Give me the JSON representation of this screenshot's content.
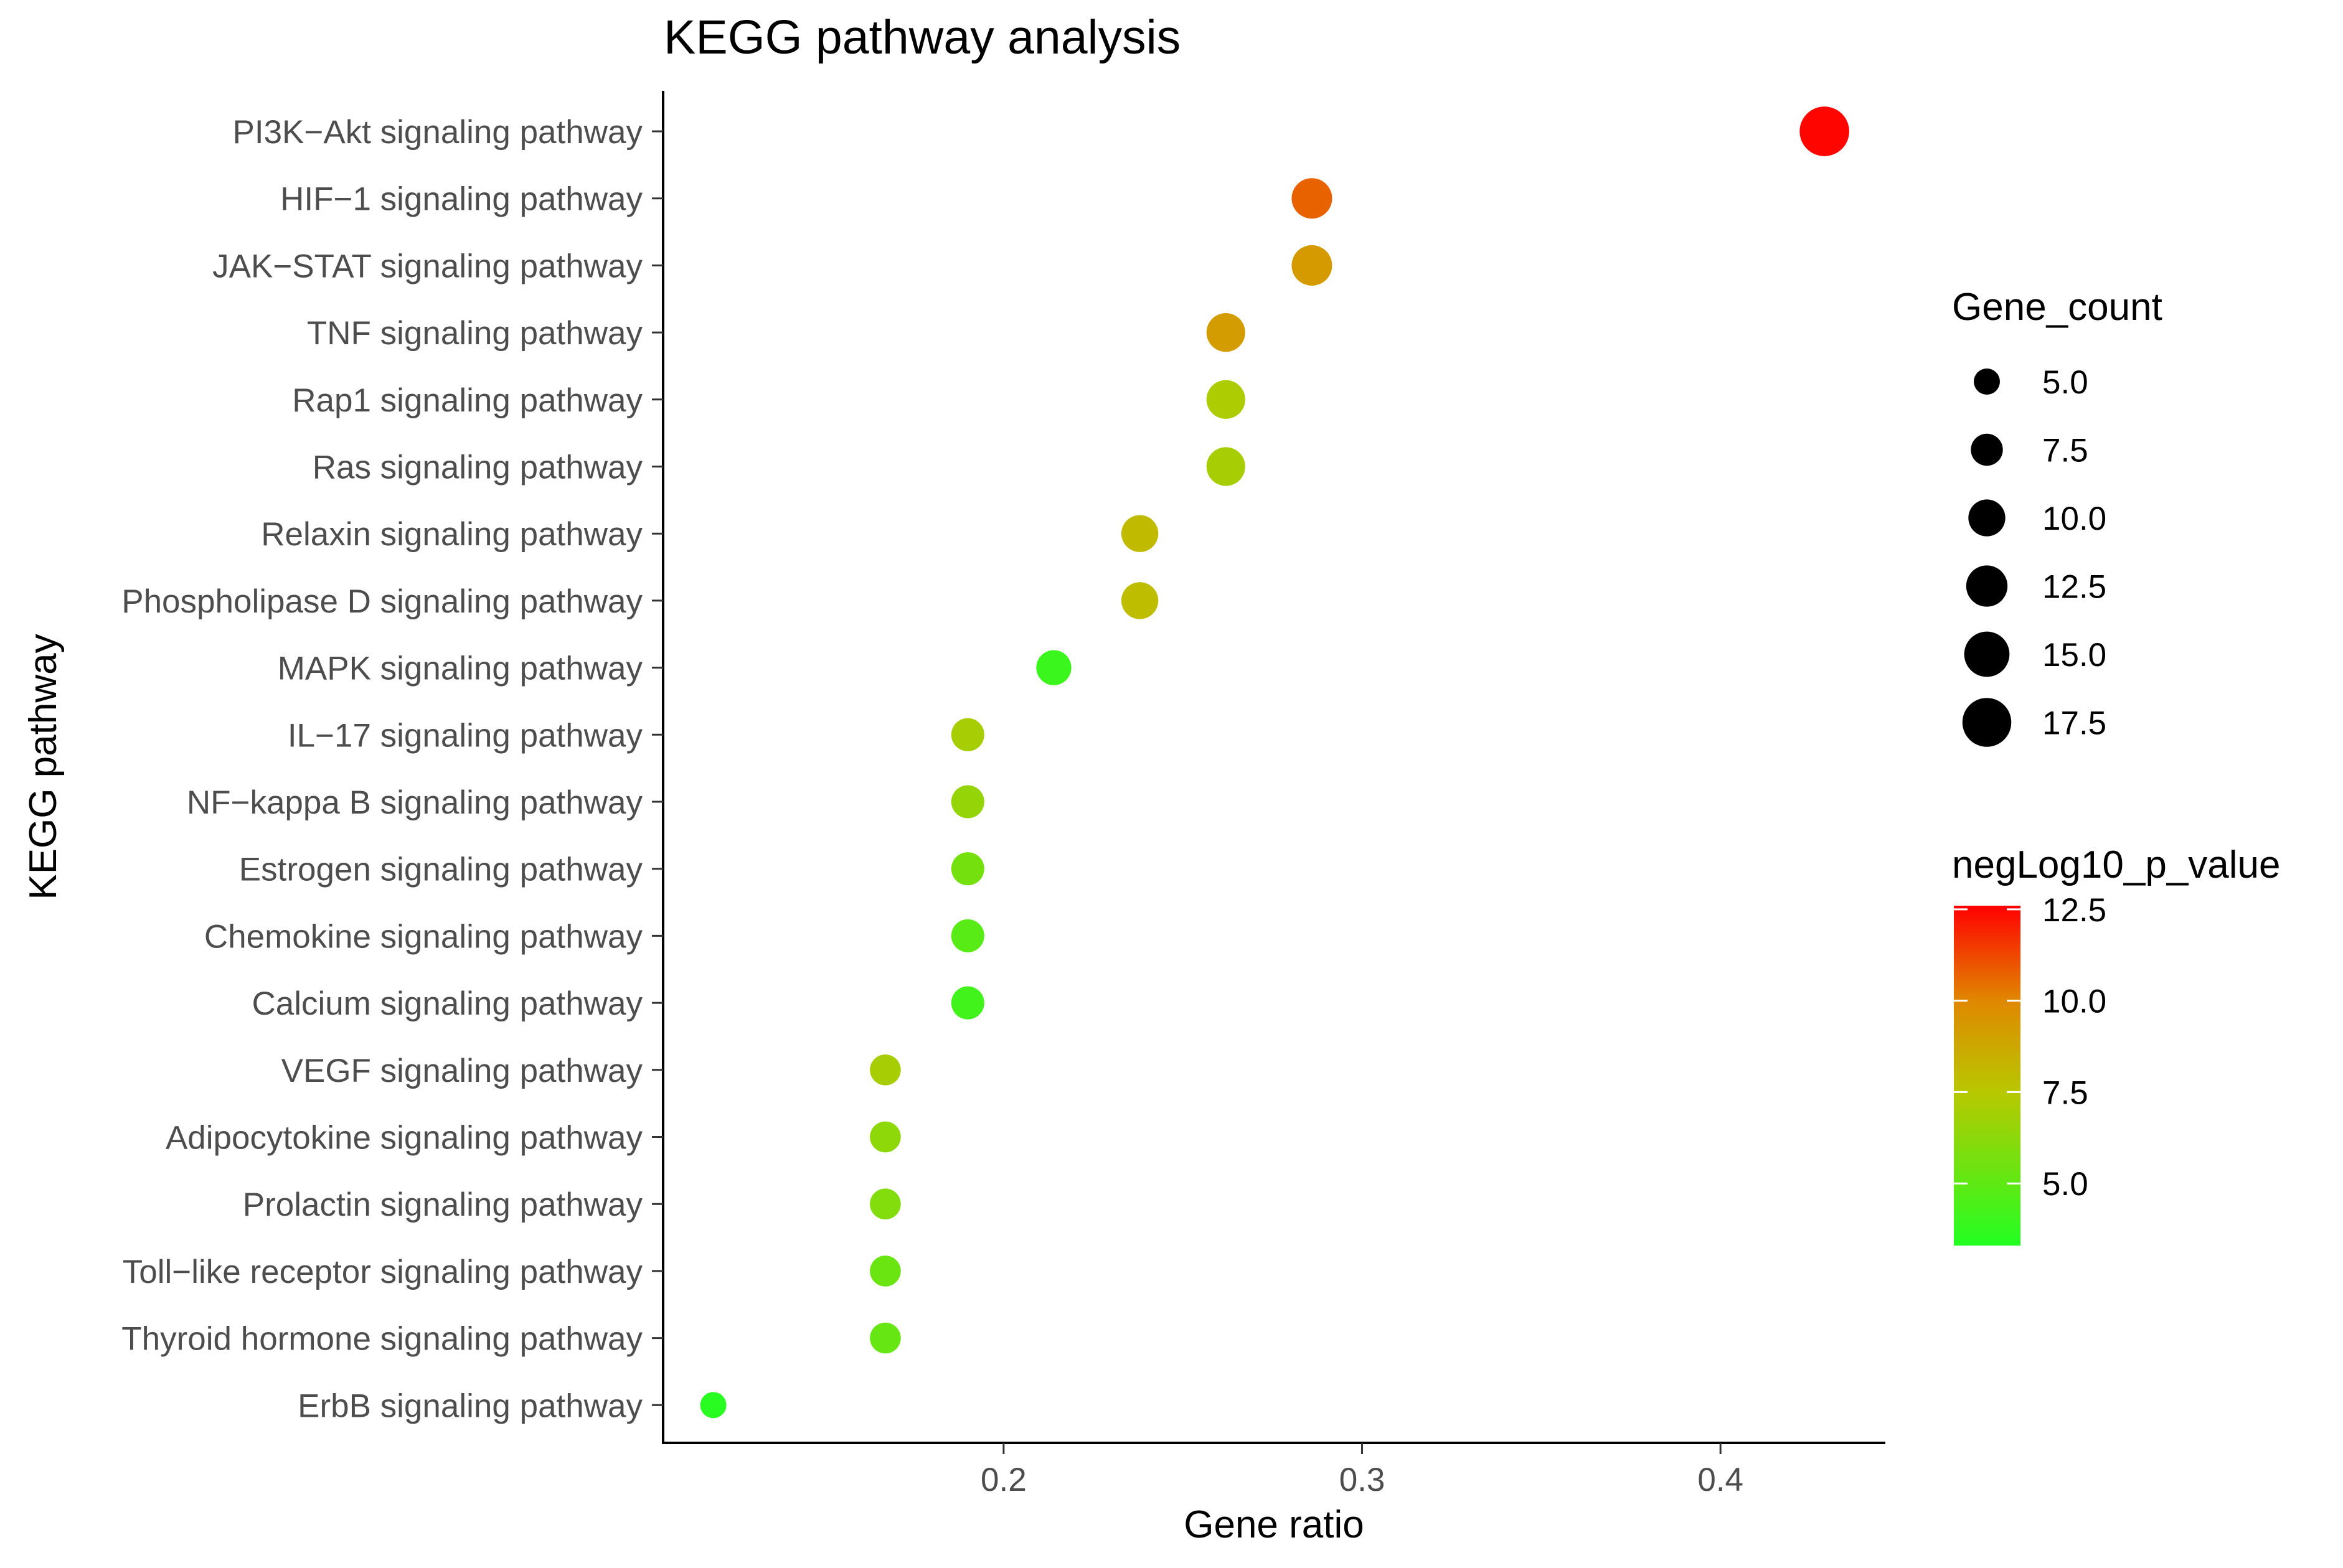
{
  "chart_data": {
    "type": "scatter",
    "title": "KEGG pathway analysis",
    "xlabel": "Gene ratio",
    "ylabel": "KEGG pathway",
    "xlim": [
      0.105,
      0.446
    ],
    "xticks": [
      "0.2",
      "0.3",
      "0.4"
    ],
    "xtick_values": [
      0.2,
      0.3,
      0.4
    ],
    "grid": false,
    "points": [
      {
        "pathway": "PI3K−Akt signaling pathway",
        "gene_ratio": 0.429,
        "gene_count": 18,
        "neglog10_p": 12.5
      },
      {
        "pathway": "HIF−1 signaling pathway",
        "gene_ratio": 0.286,
        "gene_count": 12,
        "neglog10_p": 10.7
      },
      {
        "pathway": "JAK−STAT signaling pathway",
        "gene_ratio": 0.286,
        "gene_count": 12,
        "neglog10_p": 9.3
      },
      {
        "pathway": "TNF signaling pathway",
        "gene_ratio": 0.262,
        "gene_count": 11,
        "neglog10_p": 9.2
      },
      {
        "pathway": "Rap1 signaling pathway",
        "gene_ratio": 0.262,
        "gene_count": 11,
        "neglog10_p": 7.2
      },
      {
        "pathway": "Ras signaling pathway",
        "gene_ratio": 0.262,
        "gene_count": 11,
        "neglog10_p": 7.0
      },
      {
        "pathway": "Relaxin signaling pathway",
        "gene_ratio": 0.238,
        "gene_count": 10,
        "neglog10_p": 8.0
      },
      {
        "pathway": "Phospholipase D signaling pathway",
        "gene_ratio": 0.238,
        "gene_count": 10,
        "neglog10_p": 7.9
      },
      {
        "pathway": "MAPK signaling pathway",
        "gene_ratio": 0.214,
        "gene_count": 9,
        "neglog10_p": 4.0
      },
      {
        "pathway": "IL−17 signaling pathway",
        "gene_ratio": 0.19,
        "gene_count": 8,
        "neglog10_p": 7.0
      },
      {
        "pathway": "NF−kappa B signaling pathway",
        "gene_ratio": 0.19,
        "gene_count": 8,
        "neglog10_p": 6.5
      },
      {
        "pathway": "Estrogen signaling pathway",
        "gene_ratio": 0.19,
        "gene_count": 8,
        "neglog10_p": 5.6
      },
      {
        "pathway": "Chemokine signaling pathway",
        "gene_ratio": 0.19,
        "gene_count": 8,
        "neglog10_p": 4.8
      },
      {
        "pathway": "Calcium signaling pathway",
        "gene_ratio": 0.19,
        "gene_count": 8,
        "neglog10_p": 4.2
      },
      {
        "pathway": "VEGF signaling pathway",
        "gene_ratio": 0.167,
        "gene_count": 7,
        "neglog10_p": 7.0
      },
      {
        "pathway": "Adipocytokine signaling pathway",
        "gene_ratio": 0.167,
        "gene_count": 7,
        "neglog10_p": 6.3
      },
      {
        "pathway": "Prolactin signaling pathway",
        "gene_ratio": 0.167,
        "gene_count": 7,
        "neglog10_p": 6.0
      },
      {
        "pathway": "Toll−like receptor signaling pathway",
        "gene_ratio": 0.167,
        "gene_count": 7,
        "neglog10_p": 5.3
      },
      {
        "pathway": "Thyroid hormone signaling pathway",
        "gene_ratio": 0.167,
        "gene_count": 7,
        "neglog10_p": 5.2
      },
      {
        "pathway": "ErbB signaling pathway",
        "gene_ratio": 0.119,
        "gene_count": 5,
        "neglog10_p": 3.5
      }
    ],
    "size_legend": {
      "title": "Gene_count",
      "labels": [
        "5.0",
        "7.5",
        "10.0",
        "12.5",
        "15.0",
        "17.5"
      ],
      "values": [
        5.0,
        7.5,
        10.0,
        12.5,
        15.0,
        17.5
      ]
    },
    "color_legend": {
      "title": "negLog10_p_value",
      "labels": [
        "12.5",
        "10.0",
        "7.5",
        "5.0"
      ],
      "values": [
        12.5,
        10.0,
        7.5,
        5.0
      ],
      "range": [
        3.3,
        12.6
      ],
      "low_color": "#22ff22",
      "high_color": "#ff0000"
    }
  }
}
